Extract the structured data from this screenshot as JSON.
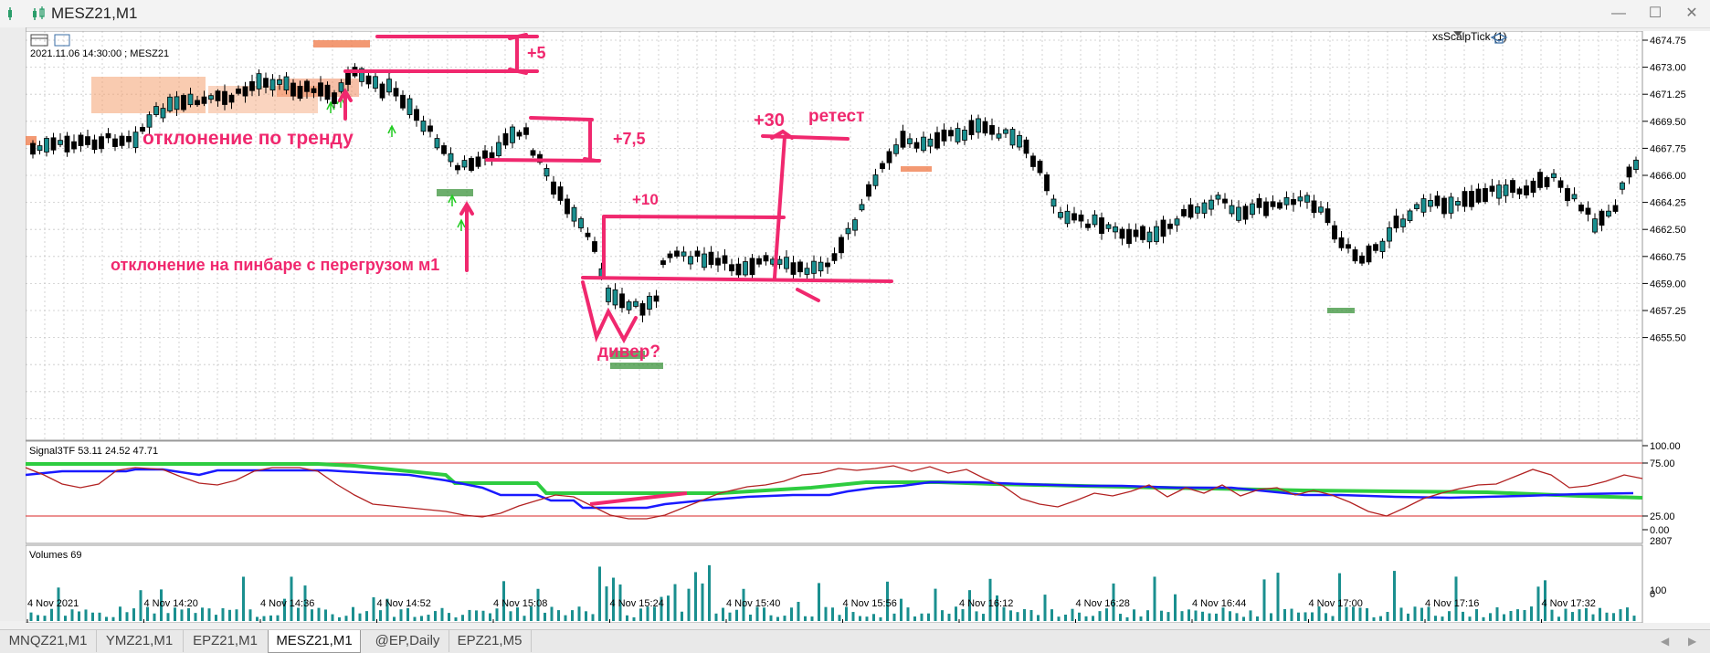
{
  "window": {
    "title": "MESZ21,M1",
    "controls": [
      "minimize-icon",
      "maximize-icon",
      "close-icon"
    ]
  },
  "chart": {
    "info": "2021.11.06 14:30:00 ; MESZ21",
    "indicator": "xsScalpTick (1)",
    "price_ticks": [
      "4674.75",
      "4673.00",
      "4671.25",
      "4669.50",
      "4667.75",
      "4666.00",
      "4664.25",
      "4662.50",
      "4660.75",
      "4659.00",
      "4657.25",
      "4655.50"
    ],
    "time_ticks": [
      "4 Nov 2021",
      "4 Nov 14:20",
      "4 Nov 14:36",
      "4 Nov 14:52",
      "4 Nov 15:08",
      "4 Nov 15:24",
      "4 Nov 15:40",
      "4 Nov 15:56",
      "4 Nov 16:12",
      "4 Nov 16:28",
      "4 Nov 16:44",
      "4 Nov 17:00",
      "4 Nov 17:16",
      "4 Nov 17:32"
    ]
  },
  "signal_panel": {
    "label": "Signal3TF 53.11 24.52 47.71",
    "ticks": [
      "100.00",
      "75.00",
      "25.00",
      "0.00"
    ]
  },
  "volume_panel": {
    "label": "Volumes 69",
    "ticks": [
      "2807",
      "100",
      "0"
    ]
  },
  "annotations": {
    "trend_deflection": "отклонение по тренду",
    "pinbar_deflection": "отклонение на пинбаре с перегрузом м1",
    "plus5": "+5",
    "plus75": "+7,5",
    "plus10": "+10",
    "plus30": "+30",
    "retest": "ретест",
    "diver": "дивер?"
  },
  "tabs": [
    "MNQZ21,M1",
    "YMZ21,M1",
    "EPZ21,M1",
    "MESZ21,M1",
    "@EP,Daily",
    "EPZ21,M5"
  ],
  "active_tab": "MESZ21,M1",
  "colors": {
    "bull": "#1a8f8f",
    "bear": "#000000",
    "annotation": "#f0286e",
    "signal_green": "#2ecc40",
    "signal_blue": "#1a1aff",
    "signal_red": "#c0392b",
    "volume": "#1a8f8f",
    "grid": "#c8c8c8"
  }
}
